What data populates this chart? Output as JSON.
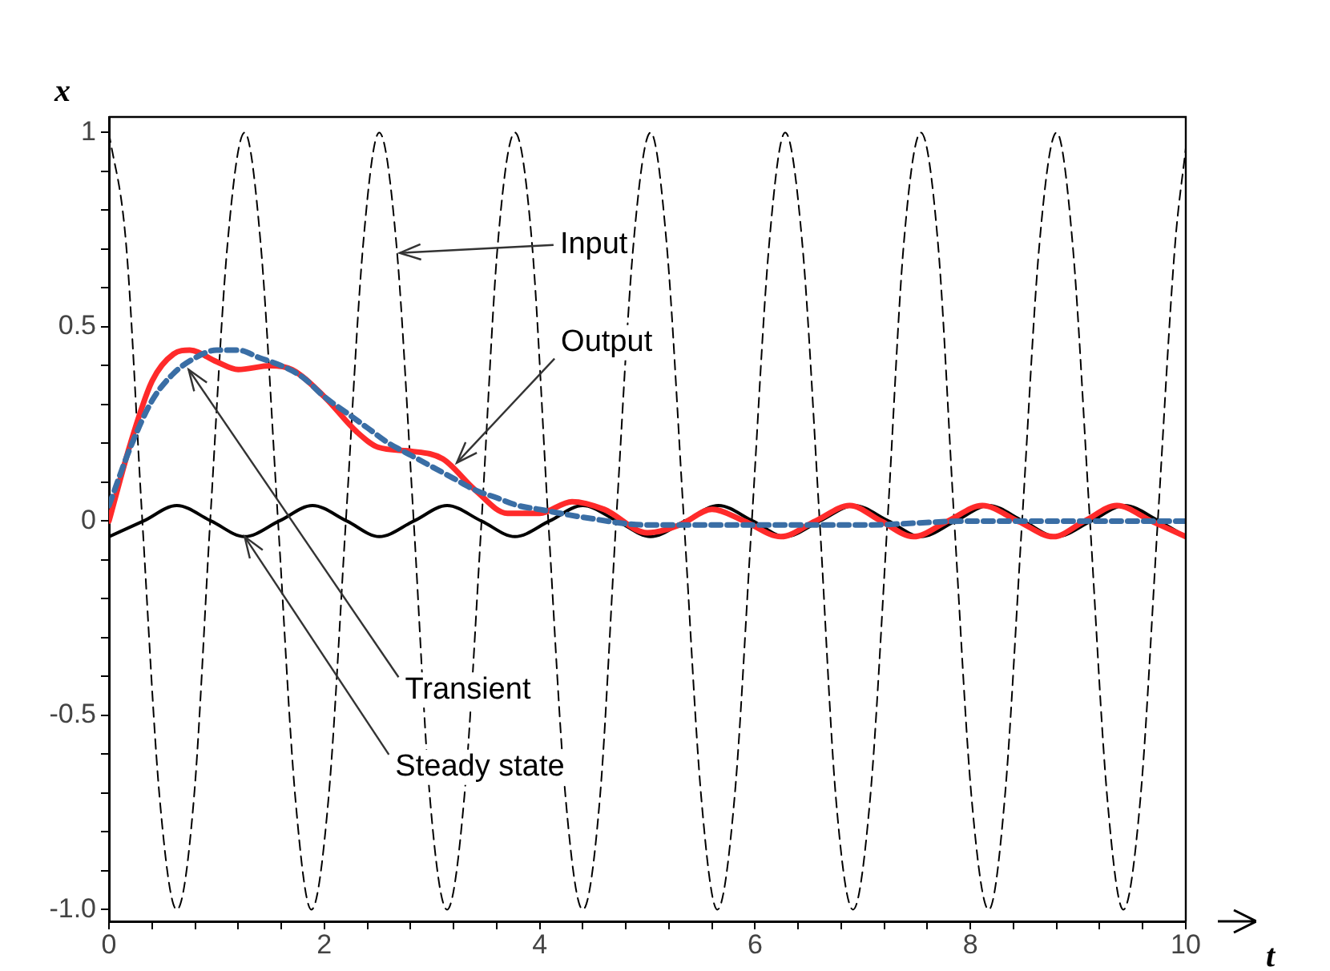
{
  "chart_data": {
    "type": "line",
    "xlabel": "t",
    "ylabel": "x",
    "xlim": [
      0,
      10
    ],
    "ylim": [
      -1.03,
      1.04
    ],
    "xticks": [
      0,
      {
        "value": 0.4,
        "label": null
      },
      {
        "value": 0.8,
        "label": null
      },
      {
        "value": 1.2,
        "label": null
      },
      {
        "value": 1.6,
        "label": null
      },
      2,
      {
        "value": 2.4,
        "label": null
      },
      {
        "value": 2.8,
        "label": null
      },
      {
        "value": 3.2,
        "label": null
      },
      {
        "value": 3.6,
        "label": null
      },
      4,
      {
        "value": 4.4,
        "label": null
      },
      {
        "value": 4.8,
        "label": null
      },
      {
        "value": 5.2,
        "label": null
      },
      {
        "value": 5.6,
        "label": null
      },
      6,
      {
        "value": 6.4,
        "label": null
      },
      {
        "value": 6.8,
        "label": null
      },
      {
        "value": 7.2,
        "label": null
      },
      {
        "value": 7.6,
        "label": null
      },
      8,
      {
        "value": 8.4,
        "label": null
      },
      {
        "value": 8.8,
        "label": null
      },
      {
        "value": 9.2,
        "label": null
      },
      {
        "value": 9.6,
        "label": null
      },
      10
    ],
    "yticks": [
      {
        "value": -1,
        "label": "-1.0"
      },
      {
        "value": -0.9,
        "label": null
      },
      {
        "value": -0.8,
        "label": null
      },
      {
        "value": -0.7,
        "label": null
      },
      {
        "value": -0.6,
        "label": null
      },
      -0.5,
      {
        "value": -0.4,
        "label": null
      },
      {
        "value": -0.3,
        "label": null
      },
      {
        "value": -0.2,
        "label": null
      },
      {
        "value": -0.1,
        "label": null
      },
      0,
      {
        "value": 0.1,
        "label": null
      },
      {
        "value": 0.2,
        "label": null
      },
      {
        "value": 0.3,
        "label": null
      },
      {
        "value": 0.4,
        "label": null
      },
      0.5,
      {
        "value": 0.6,
        "label": null
      },
      {
        "value": 0.7,
        "label": null
      },
      {
        "value": 0.8,
        "label": null
      },
      {
        "value": 0.9,
        "label": null
      },
      1
    ],
    "grid": false,
    "legend": false,
    "marker": "none",
    "series": [
      {
        "color": "#000000",
        "line_style": "dashed",
        "x": [
          0,
          0.16,
          0.31,
          0.47,
          0.63,
          0.79,
          0.94,
          1.1,
          1.26,
          1.41,
          1.57,
          1.73,
          1.88,
          2.04,
          2.2,
          2.36,
          2.51,
          2.67,
          2.83,
          2.98,
          3.14,
          3.3,
          3.46,
          3.61,
          3.77,
          3.93,
          4.08,
          4.24,
          4.4,
          4.56,
          4.71,
          4.87,
          5.03,
          5.18,
          5.34,
          5.5,
          5.65,
          5.81,
          5.97,
          6.13,
          6.28,
          6.44,
          6.6,
          6.75,
          6.91,
          7.07,
          7.23,
          7.38,
          7.54,
          7.7,
          7.85,
          8.01,
          8.17,
          8.32,
          8.48,
          8.64,
          8.8,
          8.95,
          9.11,
          9.27,
          9.42,
          9.58,
          9.74,
          9.9,
          10
        ],
        "values": [
          1,
          0.71,
          0,
          -0.71,
          -1,
          -0.71,
          0,
          0.71,
          1,
          0.71,
          0,
          -0.71,
          -1,
          -0.71,
          0,
          0.71,
          1,
          0.71,
          0,
          -0.71,
          -1,
          -0.71,
          0,
          0.71,
          1,
          0.71,
          0,
          -0.71,
          -1,
          -0.71,
          0,
          0.71,
          1,
          0.71,
          0,
          -0.71,
          -1,
          -0.71,
          0,
          0.71,
          1,
          0.71,
          0,
          -0.71,
          -1,
          -0.71,
          0,
          0.71,
          1,
          0.71,
          0,
          -0.71,
          -1,
          -0.71,
          0,
          0.71,
          1,
          0.71,
          0,
          -0.71,
          -1,
          -0.71,
          0,
          0.71,
          0.96
        ]
      },
      {
        "color": "#000000",
        "line_style": "solid",
        "x": [
          0,
          0.32,
          0.63,
          0.95,
          1.26,
          1.58,
          1.89,
          2.21,
          2.51,
          2.83,
          3.14,
          3.46,
          3.77,
          4.09,
          4.4,
          4.72,
          5.03,
          5.35,
          5.66,
          5.98,
          6.28,
          6.6,
          6.92,
          7.24,
          7.54,
          7.86,
          8.17,
          8.49,
          8.8,
          9.12,
          9.43,
          9.75,
          10
        ],
        "values": [
          -0.04,
          0,
          0.04,
          0,
          -0.04,
          0,
          0.04,
          0,
          -0.04,
          0,
          0.04,
          0,
          -0.04,
          0,
          0.04,
          0,
          -0.04,
          0,
          0.04,
          0,
          -0.04,
          0,
          0.04,
          0,
          -0.04,
          0,
          0.04,
          0,
          -0.04,
          0,
          0.04,
          0,
          -0.04
        ]
      },
      {
        "color": "#ff2a2a",
        "line_style": "solid",
        "x": [
          0,
          0.2,
          0.4,
          0.6,
          0.75,
          1.0,
          1.2,
          1.5,
          1.7,
          2.0,
          2.3,
          2.5,
          2.8,
          3.1,
          3.4,
          3.7,
          4.0,
          4.3,
          4.6,
          5.0,
          5.3,
          5.6,
          5.9,
          6.24,
          6.56,
          6.88,
          7.17,
          7.47,
          7.79,
          8.11,
          8.44,
          8.77,
          9.06,
          9.36,
          9.68,
          10
        ],
        "values": [
          0,
          0.2,
          0.36,
          0.43,
          0.44,
          0.41,
          0.39,
          0.4,
          0.39,
          0.32,
          0.23,
          0.19,
          0.18,
          0.16,
          0.08,
          0.02,
          0.02,
          0.05,
          0.03,
          -0.03,
          -0.01,
          0.03,
          0,
          -0.04,
          0,
          0.04,
          0,
          -0.04,
          0,
          0.04,
          0,
          -0.04,
          0,
          0.04,
          0,
          -0.04
        ]
      },
      {
        "color": "#3a6ea5",
        "line_style": "dashed",
        "x": [
          0,
          0.2,
          0.4,
          0.6,
          0.8,
          1.0,
          1.2,
          1.4,
          1.6,
          1.8,
          2.0,
          2.2,
          2.4,
          2.6,
          2.8,
          3.0,
          3.2,
          3.4,
          3.6,
          3.8,
          4.0,
          4.4,
          5.0,
          6,
          7,
          8,
          9,
          10
        ],
        "values": [
          0.04,
          0.19,
          0.31,
          0.38,
          0.42,
          0.44,
          0.44,
          0.42,
          0.4,
          0.37,
          0.32,
          0.28,
          0.24,
          0.2,
          0.17,
          0.14,
          0.11,
          0.08,
          0.06,
          0.04,
          0.03,
          0.01,
          -0.01,
          -0.01,
          -0.01,
          0,
          0,
          0
        ]
      }
    ],
    "annotations": [
      {
        "text": "Input",
        "x": 2.7,
        "y": 0.69
      },
      {
        "text": "Output",
        "x": 3.23,
        "y": 0.15
      },
      {
        "text": "Transient",
        "x": 0.74,
        "y": 0.39
      },
      {
        "text": "Steady state",
        "x": 1.26,
        "y": -0.04
      }
    ]
  }
}
